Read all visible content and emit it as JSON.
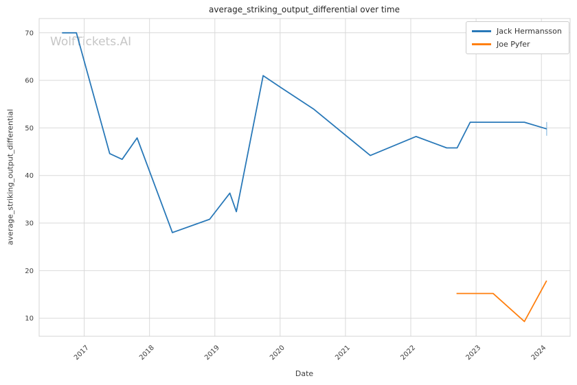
{
  "watermark": "WolfTickets.AI",
  "chart_data": {
    "type": "line",
    "title": "average_striking_output_differential over time",
    "xlabel": "Date",
    "ylabel": "average_striking_output_differential",
    "xlim": [
      2016.31,
      2024.44
    ],
    "ylim": [
      6.2,
      73.0
    ],
    "xticks": [
      2017,
      2018,
      2019,
      2020,
      2021,
      2022,
      2023,
      2024
    ],
    "yticks": [
      10,
      20,
      30,
      40,
      50,
      60,
      70
    ],
    "grid": true,
    "grid_color": "#d9d9d9",
    "legend_position": "upper right",
    "series": [
      {
        "name": "Jack Hermansson",
        "color": "#2878b8",
        "x": [
          2016.66,
          2016.88,
          2017.39,
          2017.58,
          2017.81,
          2018.35,
          2018.92,
          2019.23,
          2019.33,
          2019.74,
          2020.01,
          2020.51,
          2021.38,
          2022.08,
          2022.55,
          2022.71,
          2022.91,
          2023.74,
          2024.08
        ],
        "y": [
          70.0,
          70.0,
          44.6,
          43.4,
          47.9,
          28.0,
          30.8,
          36.3,
          32.4,
          61.0,
          58.5,
          54.0,
          44.2,
          48.2,
          45.8,
          45.8,
          51.2,
          51.2,
          49.8
        ],
        "end_tick": true,
        "end_tick_color": "#a9cde8"
      },
      {
        "name": "Joe Pyfer",
        "color": "#ff7f0e",
        "x": [
          2022.7,
          2023.26,
          2023.74,
          2024.08
        ],
        "y": [
          15.2,
          15.2,
          9.3,
          17.9
        ],
        "end_tick": false
      }
    ]
  }
}
